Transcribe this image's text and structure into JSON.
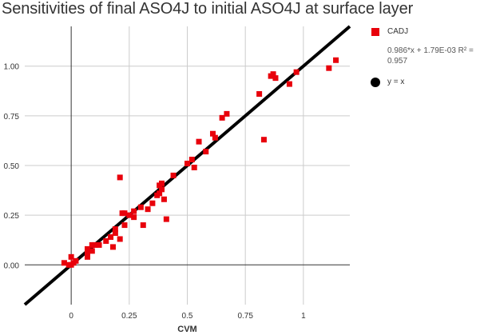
{
  "chart_data": {
    "type": "scatter",
    "title": "Sensitivities of final ASO4J to initial ASO4J at surface layer",
    "xlabel": "CVM",
    "ylabel": "",
    "xlim": [
      -0.2,
      1.2
    ],
    "ylim": [
      -0.2,
      1.2
    ],
    "x_ticks": [
      0,
      0.25,
      0.5,
      0.75,
      1
    ],
    "x_tick_labels": [
      "0",
      "0.25",
      "0.5",
      "0.75",
      "1"
    ],
    "y_ticks": [
      0,
      0.25,
      0.5,
      0.75,
      1
    ],
    "y_tick_labels": [
      "0.00",
      "0.25",
      "0.50",
      "0.75",
      "1.00"
    ],
    "grid": true,
    "legend_position": "right",
    "series": [
      {
        "name": "CADJ",
        "marker": "square",
        "color": "#e8000b",
        "points": [
          [
            -0.03,
            0.01
          ],
          [
            -0.01,
            0.0
          ],
          [
            0.0,
            0.04
          ],
          [
            0.0,
            0.0
          ],
          [
            0.01,
            0.01
          ],
          [
            0.02,
            0.02
          ],
          [
            0.07,
            0.04
          ],
          [
            0.07,
            0.06
          ],
          [
            0.07,
            0.08
          ],
          [
            0.09,
            0.07
          ],
          [
            0.09,
            0.1
          ],
          [
            0.1,
            0.1
          ],
          [
            0.12,
            0.1
          ],
          [
            0.15,
            0.12
          ],
          [
            0.17,
            0.14
          ],
          [
            0.18,
            0.09
          ],
          [
            0.19,
            0.18
          ],
          [
            0.19,
            0.16
          ],
          [
            0.21,
            0.13
          ],
          [
            0.21,
            0.44
          ],
          [
            0.22,
            0.26
          ],
          [
            0.23,
            0.2
          ],
          [
            0.23,
            0.26
          ],
          [
            0.25,
            0.25
          ],
          [
            0.27,
            0.24
          ],
          [
            0.27,
            0.27
          ],
          [
            0.3,
            0.29
          ],
          [
            0.31,
            0.2
          ],
          [
            0.33,
            0.28
          ],
          [
            0.35,
            0.31
          ],
          [
            0.37,
            0.35
          ],
          [
            0.38,
            0.36
          ],
          [
            0.38,
            0.4
          ],
          [
            0.39,
            0.38
          ],
          [
            0.39,
            0.41
          ],
          [
            0.4,
            0.33
          ],
          [
            0.41,
            0.23
          ],
          [
            0.44,
            0.45
          ],
          [
            0.5,
            0.51
          ],
          [
            0.52,
            0.53
          ],
          [
            0.53,
            0.49
          ],
          [
            0.55,
            0.62
          ],
          [
            0.58,
            0.57
          ],
          [
            0.61,
            0.66
          ],
          [
            0.62,
            0.64
          ],
          [
            0.65,
            0.74
          ],
          [
            0.67,
            0.76
          ],
          [
            0.81,
            0.86
          ],
          [
            0.83,
            0.63
          ],
          [
            0.86,
            0.95
          ],
          [
            0.87,
            0.96
          ],
          [
            0.88,
            0.94
          ],
          [
            0.94,
            0.91
          ],
          [
            0.97,
            0.97
          ],
          [
            1.11,
            0.99
          ],
          [
            1.14,
            1.03
          ]
        ]
      },
      {
        "name": "y = x",
        "type": "line",
        "color": "#000000",
        "x": [
          -0.2,
          1.2
        ],
        "y": [
          -0.2,
          1.2
        ]
      }
    ],
    "trendline_label": "0.986*x + 1.79E-03 R² = 0.957"
  }
}
